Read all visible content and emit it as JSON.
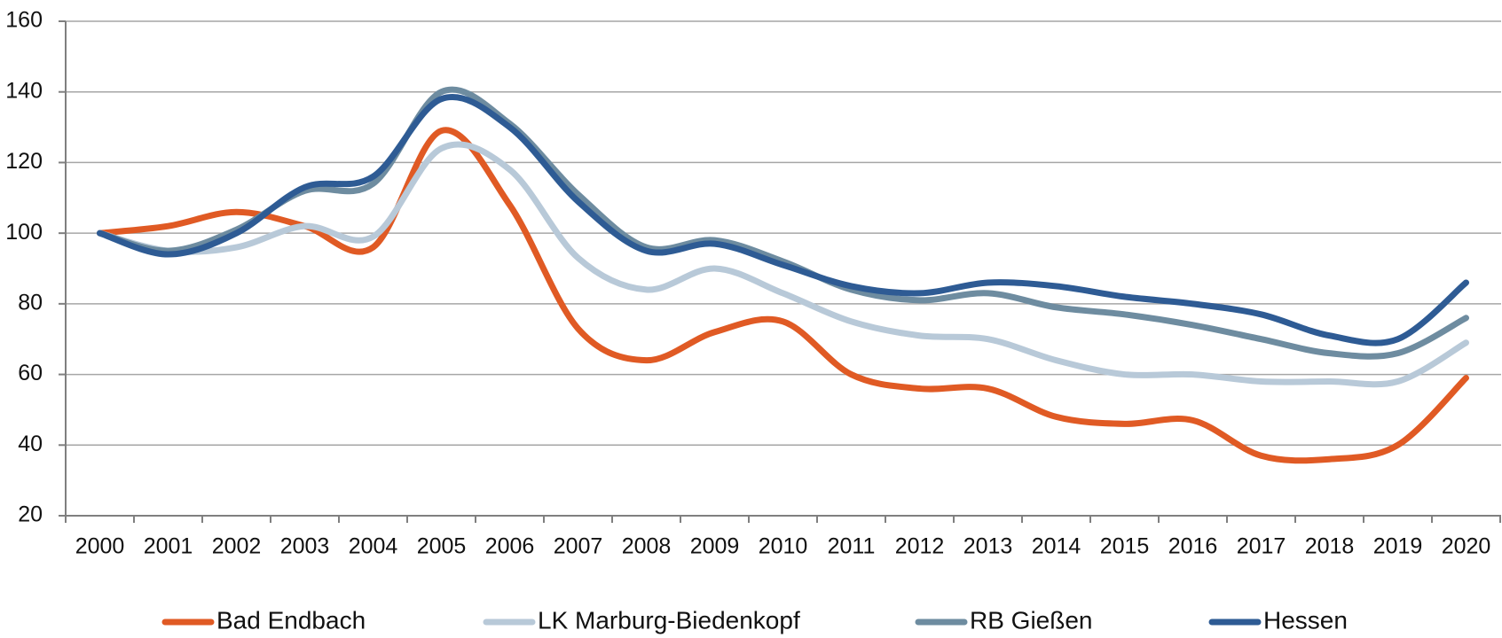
{
  "chart_data": {
    "type": "line",
    "categories": [
      "2000",
      "2001",
      "2002",
      "2003",
      "2004",
      "2005",
      "2006",
      "2007",
      "2008",
      "2009",
      "2010",
      "2011",
      "2012",
      "2013",
      "2014",
      "2015",
      "2016",
      "2017",
      "2018",
      "2019",
      "2020"
    ],
    "series": [
      {
        "name": "Bad Endbach",
        "color": "#e05a24",
        "values": [
          100,
          102,
          106,
          102,
          96,
          129,
          108,
          73,
          64,
          72,
          75,
          60,
          56,
          56,
          48,
          46,
          47,
          37,
          36,
          40,
          59
        ]
      },
      {
        "name": "LK Marburg-Biedenkopf",
        "color": "#b8c9d8",
        "values": [
          100,
          95,
          96,
          102,
          99,
          124,
          118,
          93,
          84,
          90,
          83,
          75,
          71,
          70,
          64,
          60,
          60,
          58,
          58,
          58,
          69
        ]
      },
      {
        "name": "RB Gießen",
        "color": "#6e8ca0",
        "values": [
          100,
          95,
          101,
          112,
          114,
          140,
          131,
          111,
          96,
          98,
          92,
          84,
          81,
          83,
          79,
          77,
          74,
          70,
          66,
          66,
          76
        ]
      },
      {
        "name": "Hessen",
        "color": "#2e5b94",
        "values": [
          100,
          94,
          100,
          113,
          116,
          138,
          130,
          109,
          95,
          97,
          91,
          85,
          83,
          86,
          85,
          82,
          80,
          77,
          71,
          70,
          86
        ]
      }
    ],
    "ylim": [
      20,
      160
    ],
    "yticks": [
      20,
      40,
      60,
      80,
      100,
      120,
      140,
      160
    ],
    "grid": true,
    "legend": "bottom"
  }
}
